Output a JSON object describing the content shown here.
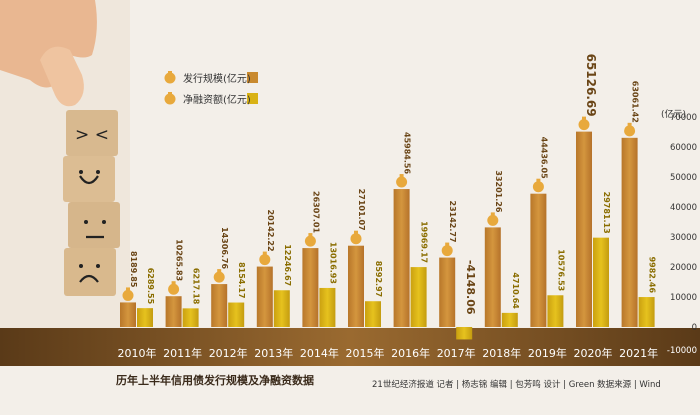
{
  "chart_data": {
    "type": "bar",
    "categories": [
      "2010年",
      "2011年",
      "2012年",
      "2013年",
      "2014年",
      "2015年",
      "2016年",
      "2017年",
      "2018年",
      "2019年",
      "2020年",
      "2021年"
    ],
    "series": [
      {
        "name": "发行规模(亿元)",
        "values": [
          8189.85,
          10265.83,
          14306.76,
          20142.22,
          26307.01,
          27101.07,
          45984.56,
          23142.77,
          33201.26,
          44436.05,
          65126.69,
          63061.42
        ],
        "labels": [
          "8189.85",
          "10265.83",
          "14306.76",
          "20142.22",
          "26307.01",
          "27101.07",
          "45984.56",
          "23142.77",
          "33201.26",
          "44436.05",
          "65126.69",
          "63061.42"
        ]
      },
      {
        "name": "净融资额(亿元)",
        "values": [
          6289.55,
          6217.18,
          8154.17,
          12246.67,
          13016.93,
          8592.97,
          19969.17,
          -4148.06,
          4710.64,
          10576.53,
          29781.13,
          9982.46
        ],
        "labels": [
          "6289.55",
          "6217.18",
          "8154.17",
          "12246.67",
          "13016.93",
          "8592.97",
          "19969.17",
          "-4148.06",
          "4710.64",
          "10576.53",
          "29781.13",
          "9982.46"
        ]
      }
    ],
    "ylabel": "(亿元)",
    "yticks": [
      "70000",
      "60000",
      "50000",
      "40000",
      "30000",
      "20000",
      "10000",
      "0",
      "-10000"
    ],
    "ytick_values": [
      70000,
      60000,
      50000,
      40000,
      30000,
      20000,
      10000,
      0,
      -10000
    ],
    "ylim": [
      -10000,
      70000
    ],
    "title": "历年上半年信用债发行规模及净融资数据",
    "credit": "21世纪经济报道 记者 | 杨志锦 编辑 | 包芳鸣 设计 | Green 数据来源 | Wind",
    "colors": {
      "issue": "#c98a2e",
      "net": "#d9b214",
      "axis_band": "#7a5020",
      "bag": "#e8a93c"
    }
  }
}
